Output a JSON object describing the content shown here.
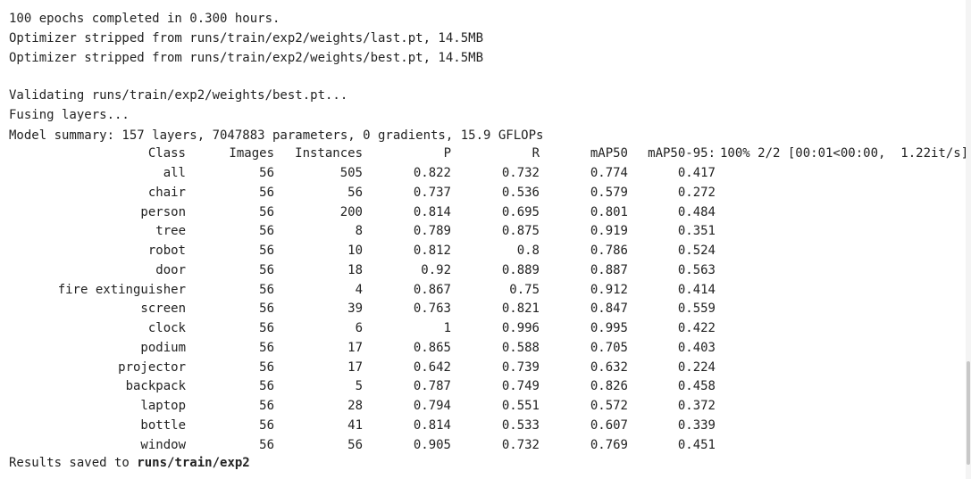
{
  "log": {
    "epochs_line": "100 epochs completed in 0.300 hours.",
    "stripped_last": "Optimizer stripped from runs/train/exp2/weights/last.pt, 14.5MB",
    "stripped_best": "Optimizer stripped from runs/train/exp2/weights/best.pt, 14.5MB",
    "validating": "Validating runs/train/exp2/weights/best.pt...",
    "fusing": "Fusing layers...",
    "summary": "Model summary: 157 layers, 7047883 parameters, 0 gradients, 15.9 GFLOPs"
  },
  "table": {
    "headers": [
      "Class",
      "Images",
      "Instances",
      "P",
      "R",
      "mAP50",
      "mAP50-95:"
    ],
    "progress": "100% 2/2 [00:01<00:00,  1.22it/s]",
    "rows": [
      [
        "all",
        "56",
        "505",
        "0.822",
        "0.732",
        "0.774",
        "0.417"
      ],
      [
        "chair",
        "56",
        "56",
        "0.737",
        "0.536",
        "0.579",
        "0.272"
      ],
      [
        "person",
        "56",
        "200",
        "0.814",
        "0.695",
        "0.801",
        "0.484"
      ],
      [
        "tree",
        "56",
        "8",
        "0.789",
        "0.875",
        "0.919",
        "0.351"
      ],
      [
        "robot",
        "56",
        "10",
        "0.812",
        "0.8",
        "0.786",
        "0.524"
      ],
      [
        "door",
        "56",
        "18",
        "0.92",
        "0.889",
        "0.887",
        "0.563"
      ],
      [
        "fire extinguisher",
        "56",
        "4",
        "0.867",
        "0.75",
        "0.912",
        "0.414"
      ],
      [
        "screen",
        "56",
        "39",
        "0.763",
        "0.821",
        "0.847",
        "0.559"
      ],
      [
        "clock",
        "56",
        "6",
        "1",
        "0.996",
        "0.995",
        "0.422"
      ],
      [
        "podium",
        "56",
        "17",
        "0.865",
        "0.588",
        "0.705",
        "0.403"
      ],
      [
        "projector",
        "56",
        "17",
        "0.642",
        "0.739",
        "0.632",
        "0.224"
      ],
      [
        "backpack",
        "56",
        "5",
        "0.787",
        "0.749",
        "0.826",
        "0.458"
      ],
      [
        "laptop",
        "56",
        "28",
        "0.794",
        "0.551",
        "0.572",
        "0.372"
      ],
      [
        "bottle",
        "56",
        "41",
        "0.814",
        "0.533",
        "0.607",
        "0.339"
      ],
      [
        "window",
        "56",
        "56",
        "0.905",
        "0.732",
        "0.769",
        "0.451"
      ]
    ]
  },
  "results": {
    "prefix": "Results saved to ",
    "path": "runs/train/exp2"
  }
}
